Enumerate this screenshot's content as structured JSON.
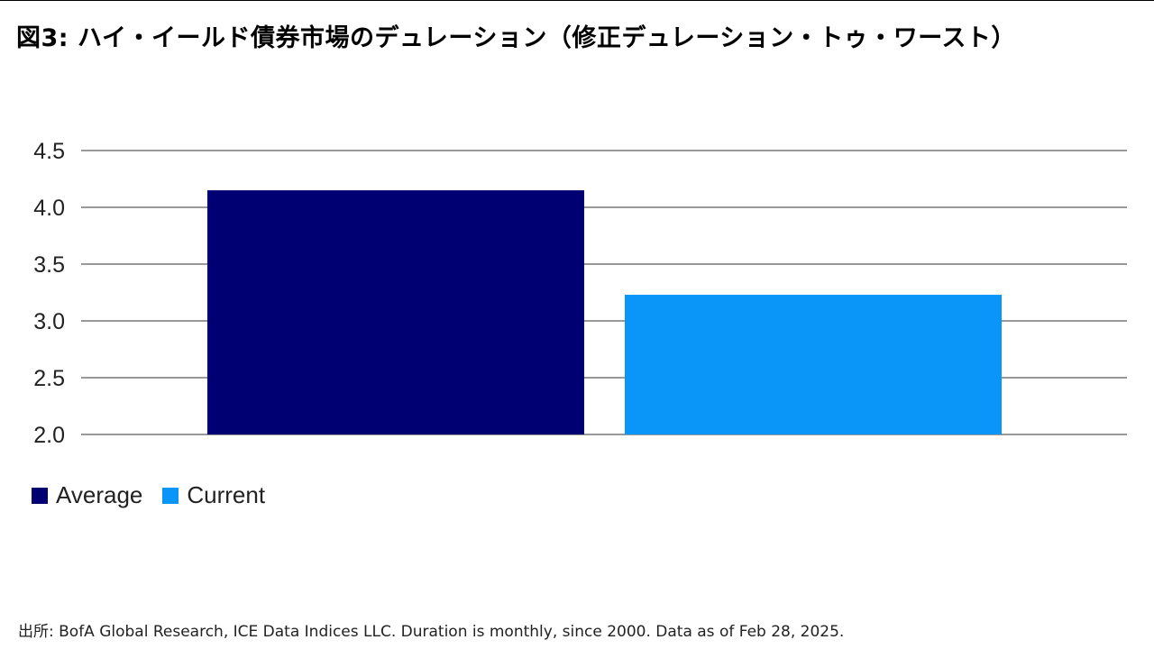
{
  "title": "図3: ハイ・イールド債券市場のデュレーション（修正デュレーション・トゥ・ワースト）",
  "source": "出所: BofA Global Research, ICE Data Indices LLC. Duration is monthly, since 2000. Data as of Feb 28, 2025.",
  "colors": {
    "average": "#000072",
    "current": "#0a96f8",
    "grid": "#333333"
  },
  "chart_data": {
    "type": "bar",
    "title": "図3: ハイ・イールド債券市場のデュレーション（修正デュレーション・トゥ・ワースト）",
    "categories": [
      "Average",
      "Current"
    ],
    "values": [
      4.15,
      3.23
    ],
    "ylim": [
      2.0,
      4.5
    ],
    "yticks": [
      "2.0",
      "2.5",
      "3.0",
      "3.5",
      "4.0",
      "4.5"
    ],
    "grid": true,
    "legend_position": "bottom-left",
    "legend": [
      "Average",
      "Current"
    ]
  }
}
